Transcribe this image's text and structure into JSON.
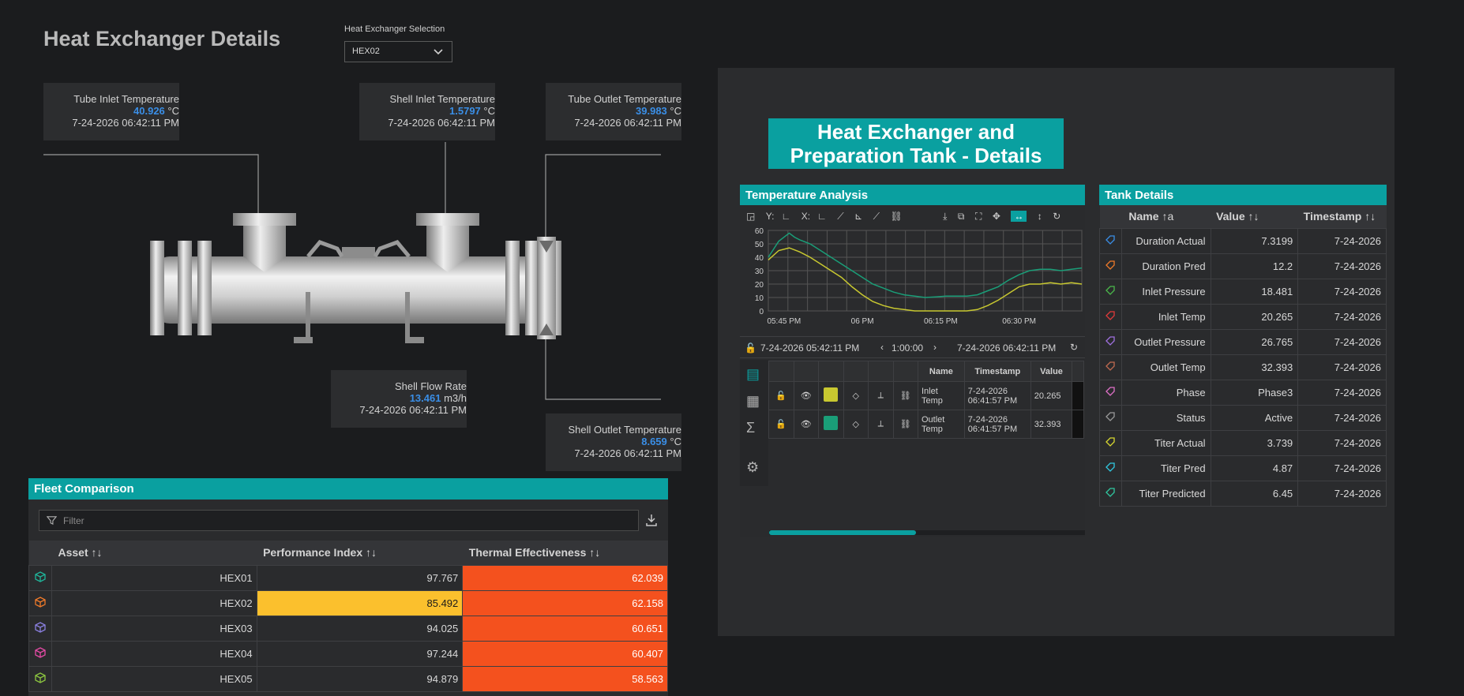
{
  "page": {
    "title": "Heat Exchanger Details",
    "selection_label": "Heat Exchanger Selection",
    "selection_value": "HEX02"
  },
  "readouts": {
    "tube_inlet": {
      "label": "Tube Inlet Temperature",
      "value": "40.926",
      "unit": "°C",
      "time": "7-24-2026 06:42:11 PM"
    },
    "shell_inlet": {
      "label": "Shell Inlet Temperature",
      "value": "1.5797",
      "unit": "°C",
      "time": "7-24-2026 06:42:11 PM"
    },
    "tube_outlet": {
      "label": "Tube Outlet Temperature",
      "value": "39.983",
      "unit": "°C",
      "time": "7-24-2026 06:42:11 PM"
    },
    "shell_flow": {
      "label": "Shell Flow Rate",
      "value": "13.461",
      "unit": "m3/h",
      "time": "7-24-2026 06:42:11 PM"
    },
    "shell_outlet": {
      "label": "Shell Outlet Temperature",
      "value": "8.659",
      "unit": "°C",
      "time": "7-24-2026 06:42:11 PM"
    }
  },
  "fleet": {
    "title": "Fleet Comparison",
    "filter_placeholder": "Filter",
    "headers": [
      "Asset",
      "Performance Index",
      "Thermal Effectiveness"
    ],
    "sort_glyph": "↑↓",
    "rows": [
      {
        "asset": "HEX01",
        "perf": "97.767",
        "therm": "62.039",
        "icon_color": "#1fb59a",
        "perf_highlight": false
      },
      {
        "asset": "HEX02",
        "perf": "85.492",
        "therm": "62.158",
        "icon_color": "#f07a2a",
        "perf_highlight": true
      },
      {
        "asset": "HEX03",
        "perf": "94.025",
        "therm": "60.651",
        "icon_color": "#8a7fe0",
        "perf_highlight": false
      },
      {
        "asset": "HEX04",
        "perf": "97.244",
        "therm": "60.407",
        "icon_color": "#e64aa6",
        "perf_highlight": false
      },
      {
        "asset": "HEX05",
        "perf": "94.879",
        "therm": "58.563",
        "icon_color": "#8cc63f",
        "perf_highlight": false
      }
    ],
    "colors": {
      "perf_highlight": "#fbc02d",
      "therm": "#f4511e"
    }
  },
  "right": {
    "banner_line1": "Heat Exchanger and",
    "banner_line2": "Preparation Tank - Details"
  },
  "temperature": {
    "title": "Temperature Analysis",
    "toolbar_y": "Y:",
    "toolbar_x": "X:",
    "range_start": "7-24-2026 05:42:11 PM",
    "range_duration": "1:00:00",
    "range_end": "7-24-2026 06:42:11 PM",
    "legend_headers": [
      "Name",
      "Timestamp",
      "Value"
    ],
    "legend_rows": [
      {
        "name_l1": "Inlet",
        "name_l2": "Temp",
        "ts_l1": "7-24-2026",
        "ts_l2": "06:41:57 PM",
        "value": "20.265",
        "color": "#c8c830"
      },
      {
        "name_l1": "Outlet",
        "name_l2": "Temp",
        "ts_l1": "7-24-2026",
        "ts_l2": "06:41:57 PM",
        "value": "32.393",
        "color": "#1a9e78"
      }
    ]
  },
  "chart_data": {
    "type": "line",
    "xlabel": "",
    "ylabel": "",
    "ylim": [
      0,
      60
    ],
    "yticks": [
      0,
      10,
      20,
      30,
      40,
      50,
      60
    ],
    "xlim_minutes": [
      0,
      60
    ],
    "xtick_labels": [
      "05:45 PM",
      "06 PM",
      "06:15 PM",
      "06:30 PM"
    ],
    "xtick_minutes": [
      3,
      18,
      33,
      48
    ],
    "grid": true,
    "series": [
      {
        "color": "#1a9e78",
        "x": [
          0,
          2,
          4,
          5,
          6,
          8,
          10,
          12,
          14,
          16,
          18,
          20,
          22,
          24,
          26,
          28,
          30,
          32,
          34,
          36,
          38,
          40,
          42,
          44,
          46,
          48,
          50,
          52,
          54,
          56,
          58,
          60
        ],
        "values": [
          40,
          52,
          58,
          55,
          53,
          50,
          45,
          40,
          35,
          30,
          25,
          20,
          17,
          14,
          12,
          11,
          10,
          10.5,
          11,
          11,
          11,
          12,
          15,
          18,
          23,
          27,
          30,
          31,
          31,
          30,
          31,
          32
        ]
      },
      {
        "color": "#c8c830",
        "x": [
          0,
          2,
          4,
          6,
          8,
          10,
          12,
          14,
          16,
          18,
          20,
          22,
          24,
          26,
          28,
          30,
          32,
          34,
          36,
          38,
          40,
          42,
          44,
          46,
          48,
          50,
          52,
          54,
          56,
          58,
          60
        ],
        "values": [
          38,
          45,
          47,
          44,
          40,
          35,
          30,
          25,
          18,
          12,
          7,
          4,
          2,
          1,
          0,
          0,
          0,
          0,
          0,
          0,
          1,
          4,
          8,
          13,
          18,
          20,
          20,
          21,
          20,
          21,
          20
        ]
      }
    ]
  },
  "tank": {
    "title": "Tank Details",
    "headers": [
      "Name",
      "Value",
      "Timestamp"
    ],
    "rows": [
      {
        "name": "Duration Actual",
        "value": "7.3199",
        "ts": "7-24-2026",
        "color": "#3a8ee6"
      },
      {
        "name": "Duration Pred",
        "value": "12.2",
        "ts": "7-24-2026",
        "color": "#f07a2a"
      },
      {
        "name": "Inlet Pressure",
        "value": "18.481",
        "ts": "7-24-2026",
        "color": "#4bb84b"
      },
      {
        "name": "Inlet Temp",
        "value": "20.265",
        "ts": "7-24-2026",
        "color": "#e03a3a"
      },
      {
        "name": "Outlet Pressure",
        "value": "26.765",
        "ts": "7-24-2026",
        "color": "#a070e0"
      },
      {
        "name": "Outlet Temp",
        "value": "32.393",
        "ts": "7-24-2026",
        "color": "#c06a50"
      },
      {
        "name": "Phase",
        "value": "Phase3",
        "ts": "7-24-2026",
        "color": "#e070c8"
      },
      {
        "name": "Status",
        "value": "Active",
        "ts": "7-24-2026",
        "color": "#9a9a9a"
      },
      {
        "name": "Titer Actual",
        "value": "3.739",
        "ts": "7-24-2026",
        "color": "#d8d830"
      },
      {
        "name": "Titer Pred",
        "value": "4.87",
        "ts": "7-24-2026",
        "color": "#30c8e0"
      },
      {
        "name": "Titer Predicted",
        "value": "6.45",
        "ts": "7-24-2026",
        "color": "#30c8a0"
      }
    ]
  }
}
